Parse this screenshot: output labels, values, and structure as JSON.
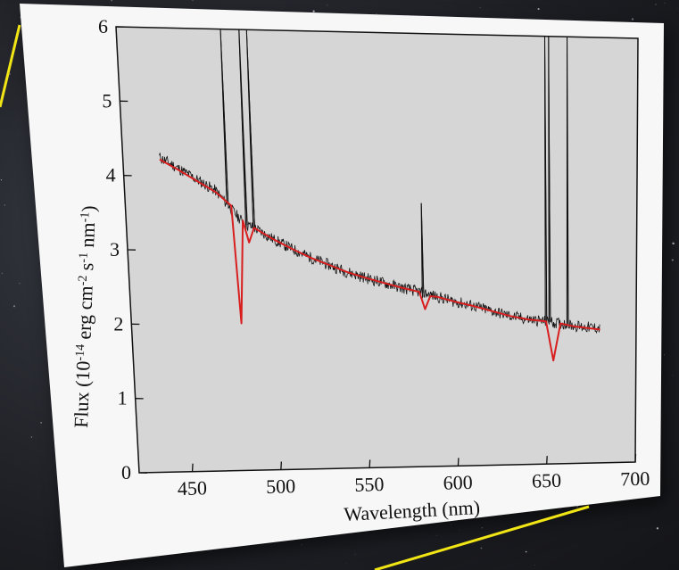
{
  "chart_data": {
    "type": "line",
    "title": "",
    "xlabel": "Wavelength (nm)",
    "ylabel": "Flux (10-14 erg cm-2 s-1 nm-1)",
    "ylabel_parts": [
      "Flux (10",
      "-14",
      " erg cm",
      "-2",
      " s",
      "-1",
      " nm",
      "-1",
      ")"
    ],
    "xlim": [
      420,
      700
    ],
    "ylim": [
      0,
      6
    ],
    "xticks": [
      "450",
      "500",
      "550",
      "600",
      "650",
      "700"
    ],
    "yticks": [
      "0",
      "1",
      "2",
      "3",
      "4",
      "5",
      "6"
    ],
    "legend": "none",
    "grid": false,
    "series": [
      {
        "color": "#111111",
        "style": "noisy observed spectrum",
        "x": [
          440,
          450,
          460,
          470,
          478,
          485,
          490,
          500,
          510,
          520,
          530,
          540,
          550,
          560,
          570,
          580,
          590,
          600,
          610,
          620,
          630,
          640,
          650,
          660,
          670,
          680
        ],
        "y": [
          4.25,
          4.1,
          3.95,
          3.8,
          3.55,
          3.35,
          3.3,
          3.15,
          3.02,
          2.9,
          2.8,
          2.7,
          2.62,
          2.55,
          2.48,
          2.42,
          2.35,
          2.28,
          2.22,
          2.15,
          2.08,
          2.03,
          2.0,
          1.96,
          1.92,
          1.9
        ],
        "spikes": [
          {
            "x": 476,
            "y": 6.0
          },
          {
            "x": 486,
            "y": 6.0
          },
          {
            "x": 490,
            "y": 6.0
          },
          {
            "x": 582,
            "y": 3.65
          },
          {
            "x": 650,
            "y": 6.0
          },
          {
            "x": 652,
            "y": 6.0
          },
          {
            "x": 662,
            "y": 6.0
          }
        ]
      },
      {
        "color": "#d81e1e",
        "style": "model fit",
        "x": [
          440,
          450,
          460,
          470,
          478,
          481,
          484,
          487,
          490,
          500,
          510,
          520,
          530,
          540,
          550,
          560,
          570,
          580,
          583,
          586,
          590,
          600,
          610,
          620,
          630,
          640,
          650,
          654,
          658,
          665,
          680
        ],
        "y": [
          4.22,
          4.08,
          3.93,
          3.78,
          3.6,
          2.0,
          3.4,
          3.1,
          3.3,
          3.15,
          3.02,
          2.9,
          2.8,
          2.7,
          2.62,
          2.55,
          2.48,
          2.42,
          2.18,
          2.36,
          2.35,
          2.28,
          2.22,
          2.15,
          2.08,
          2.03,
          2.0,
          1.45,
          1.97,
          1.93,
          1.88
        ]
      }
    ]
  }
}
